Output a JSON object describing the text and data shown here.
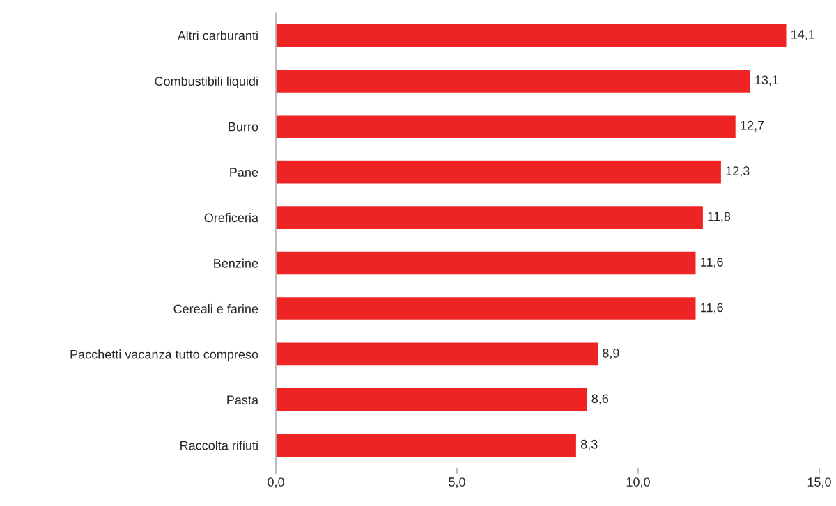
{
  "chart_data": {
    "type": "bar",
    "orientation": "horizontal",
    "categories": [
      "Altri carburanti",
      "Combustibili liquidi",
      "Burro",
      "Pane",
      "Oreficeria",
      "Benzine",
      "Cereali e farine",
      "Pacchetti vacanza tutto compreso",
      "Pasta",
      "Raccolta rifiuti"
    ],
    "values": [
      14.1,
      13.1,
      12.7,
      12.3,
      11.8,
      11.6,
      11.6,
      8.9,
      8.6,
      8.3
    ],
    "value_labels": [
      "14,1",
      "13,1",
      "12,7",
      "12,3",
      "11,8",
      "11,6",
      "11,6",
      "8,9",
      "8,6",
      "8,3"
    ],
    "color": "#ee2424",
    "xlim": [
      0,
      15
    ],
    "xticks": [
      {
        "value": 0,
        "label": "0,0"
      },
      {
        "value": 5,
        "label": "5,0"
      },
      {
        "value": 10,
        "label": "10,0"
      },
      {
        "value": 15,
        "label": "15,0"
      }
    ],
    "grid": false,
    "legend": false
  }
}
